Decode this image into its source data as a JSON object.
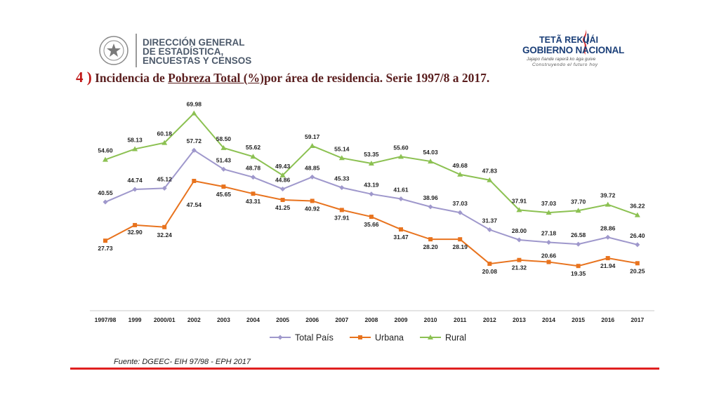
{
  "header": {
    "org_lines": [
      "DIRECCIÓN GENERAL",
      "DE ESTADÍSTICA,",
      "ENCUESTAS Y CENSOS"
    ],
    "gov_line1": "TETÃ REKUÁI",
    "gov_line2": "GOBIERNO NACIONAL",
    "gov_line3": "Jajapo ñande raperã ko ága guive",
    "gov_line4": "Construyendo el futuro hoy"
  },
  "title": {
    "number": "4 )",
    "part1": " Incidencia de ",
    "underlined": "Pobreza Total (%)",
    "part2": "por área de residencia. Serie 1997/8 a 2017."
  },
  "source": "Fuente: DGEEC- EIH 97/98 - EPH 2017",
  "colors": {
    "total": "#9f98cc",
    "urbana": "#e8731e",
    "rural": "#8cc152",
    "accent": "#e02020"
  },
  "chart_data": {
    "type": "line",
    "categories": [
      "1997/98",
      "1999",
      "2000/01",
      "2002",
      "2003",
      "2004",
      "2005",
      "2006",
      "2007",
      "2008",
      "2009",
      "2010",
      "2011",
      "2012",
      "2013",
      "2014",
      "2015",
      "2016",
      "2017"
    ],
    "series": [
      {
        "name": "Total País",
        "values": [
          40.55,
          44.74,
          45.12,
          57.72,
          51.43,
          48.78,
          44.86,
          48.85,
          45.33,
          43.19,
          41.61,
          38.96,
          37.03,
          31.37,
          28.0,
          27.18,
          26.58,
          28.86,
          26.4
        ],
        "labels": [
          "40.55",
          "44.74",
          "45.12",
          "57.72",
          "51.43",
          "48.78",
          "44.86",
          "48.85",
          "45.33",
          "43.19",
          "41.61",
          "38.96",
          "37.03",
          "31.37",
          "28.00",
          "27.18",
          "26.58",
          "28.86",
          "26.40"
        ]
      },
      {
        "name": "Urbana",
        "values": [
          27.73,
          32.9,
          32.24,
          47.54,
          45.65,
          43.31,
          41.25,
          40.92,
          37.91,
          35.66,
          31.47,
          28.2,
          28.19,
          20.08,
          21.32,
          20.66,
          19.35,
          21.94,
          20.25
        ],
        "labels": [
          "27.73",
          "32.90",
          "32.24",
          "47.54",
          "45.65",
          "43.31",
          "41.25",
          "40.92",
          "37.91",
          "35.66",
          "31.47",
          "28.20",
          "28.19",
          "20.08",
          "21.32",
          "20.66",
          "19.35",
          "21.94",
          "20.25"
        ]
      },
      {
        "name": "Rural",
        "values": [
          54.6,
          58.13,
          60.18,
          69.98,
          58.5,
          55.62,
          49.43,
          59.17,
          55.14,
          53.35,
          55.6,
          54.03,
          49.68,
          47.83,
          37.91,
          37.03,
          37.7,
          39.72,
          36.22
        ],
        "labels": [
          "54.60",
          "58.13",
          "60.18",
          "69.98",
          "58.50",
          "55.62",
          "49.43",
          "59.17",
          "55.14",
          "53.35",
          "55.60",
          "54.03",
          "49.68",
          "47.83",
          "37.91",
          "37.03",
          "37.70",
          "39.72",
          "36.22"
        ]
      }
    ],
    "legend_position": "bottom",
    "grid": false
  }
}
